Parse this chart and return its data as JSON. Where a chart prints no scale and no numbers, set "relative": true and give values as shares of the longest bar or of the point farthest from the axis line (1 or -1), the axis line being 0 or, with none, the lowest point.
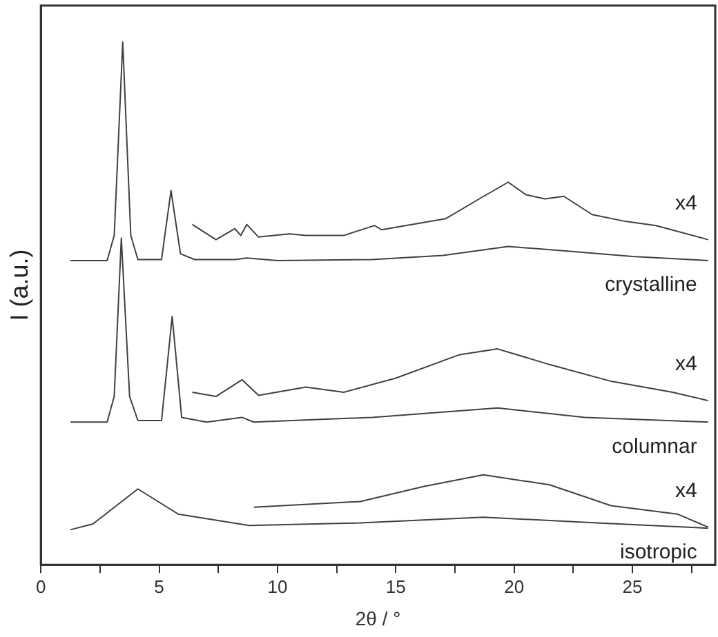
{
  "chart_data": {
    "type": "line",
    "relative": true,
    "xlabel": "2θ / °",
    "ylabel": "I (a.u.)",
    "xlim": [
      0,
      28.5
    ],
    "xticks": [
      0,
      {
        "value": 2.5,
        "label": null
      },
      5,
      {
        "value": 7.5,
        "label": null
      },
      10,
      {
        "value": 12.5,
        "label": null
      },
      15,
      {
        "value": 17.5,
        "label": null
      },
      20,
      {
        "value": 22.5,
        "label": null
      },
      25,
      {
        "value": 27.5,
        "label": null
      }
    ],
    "grid": false,
    "legend": false,
    "marker": "none",
    "line_style": "solid",
    "series": [
      {
        "name": "crystalline",
        "color": "#404040",
        "x": [
          1.25,
          2.8,
          3.1,
          3.46,
          3.8,
          4.1,
          5.1,
          5.5,
          5.9,
          6.5,
          8.2,
          8.7,
          10,
          14,
          17,
          19.75,
          22,
          25,
          28.2
        ],
        "values": [
          0.582,
          0.582,
          0.63,
          1,
          0.63,
          0.584,
          0.584,
          0.716,
          0.595,
          0.584,
          0.584,
          0.587,
          0.582,
          0.584,
          0.592,
          0.609,
          0.601,
          0.59,
          0.582
        ]
      },
      {
        "name": "x4",
        "color": "#404040",
        "x": [
          6.4,
          7.4,
          8.2,
          8.45,
          8.7,
          9.2,
          10.5,
          11.2,
          12.8,
          14.1,
          14.4,
          17.1,
          18.6,
          19.75,
          20.5,
          21.3,
          22.1,
          23.3,
          24.7,
          26,
          28.2
        ],
        "values": [
          0.651,
          0.622,
          0.643,
          0.63,
          0.651,
          0.627,
          0.633,
          0.63,
          0.63,
          0.649,
          0.641,
          0.662,
          0.702,
          0.732,
          0.708,
          0.7,
          0.705,
          0.67,
          0.657,
          0.649,
          0.622
        ]
      },
      {
        "name": "columnar",
        "color": "#404040",
        "x": [
          1.25,
          2.8,
          3.1,
          3.4,
          3.75,
          4.1,
          5.1,
          5.55,
          5.95,
          7,
          8.5,
          9,
          14,
          19.3,
          23,
          28.2
        ],
        "values": [
          0.273,
          0.273,
          0.322,
          0.625,
          0.322,
          0.276,
          0.276,
          0.475,
          0.282,
          0.273,
          0.282,
          0.273,
          0.282,
          0.3,
          0.282,
          0.273
        ]
      },
      {
        "name": "x4",
        "color": "#404040",
        "x": [
          6.4,
          7.4,
          8.5,
          9.2,
          11.2,
          12.8,
          15,
          17.7,
          19.3,
          21.5,
          24.1,
          26.7,
          28.2
        ],
        "values": [
          0.33,
          0.322,
          0.354,
          0.324,
          0.34,
          0.33,
          0.357,
          0.402,
          0.413,
          0.383,
          0.351,
          0.33,
          0.314
        ]
      },
      {
        "name": "isotropic",
        "color": "#404040",
        "x": [
          1.25,
          2.2,
          4.1,
          5.8,
          8.8,
          13.5,
          18.7,
          23.5,
          28.2
        ],
        "values": [
          0.067,
          0.078,
          0.145,
          0.097,
          0.075,
          0.08,
          0.091,
          0.08,
          0.07
        ]
      },
      {
        "name": "x4",
        "color": "#404040",
        "x": [
          9,
          13.5,
          16.2,
          18.7,
          21.5,
          24.1,
          26.9,
          28.2
        ],
        "values": [
          0.11,
          0.121,
          0.15,
          0.172,
          0.153,
          0.113,
          0.097,
          0.072
        ]
      }
    ]
  }
}
